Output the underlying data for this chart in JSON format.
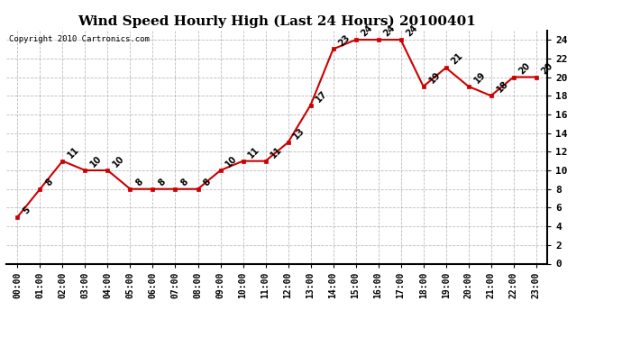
{
  "title": "Wind Speed Hourly High (Last 24 Hours) 20100401",
  "copyright_text": "Copyright 2010 Cartronics.com",
  "hours": [
    "00:00",
    "01:00",
    "02:00",
    "03:00",
    "04:00",
    "05:00",
    "06:00",
    "07:00",
    "08:00",
    "09:00",
    "10:00",
    "11:00",
    "12:00",
    "13:00",
    "14:00",
    "15:00",
    "16:00",
    "17:00",
    "18:00",
    "19:00",
    "20:00",
    "21:00",
    "22:00",
    "23:00"
  ],
  "values": [
    5,
    8,
    11,
    10,
    10,
    8,
    8,
    8,
    8,
    10,
    11,
    11,
    13,
    17,
    23,
    24,
    24,
    24,
    19,
    21,
    19,
    18,
    20,
    20
  ],
  "line_color": "#cc0000",
  "marker": "s",
  "marker_size": 3,
  "ylim": [
    0.0,
    25.0
  ],
  "yticks": [
    0.0,
    2.0,
    4.0,
    6.0,
    8.0,
    10.0,
    12.0,
    14.0,
    16.0,
    18.0,
    20.0,
    22.0,
    24.0
  ],
  "grid_color": "#aaaaaa",
  "background_color": "#ffffff",
  "title_fontsize": 11,
  "xlabel_fontsize": 7,
  "ylabel_fontsize": 8,
  "annotation_fontsize": 7,
  "copyright_fontsize": 6.5
}
